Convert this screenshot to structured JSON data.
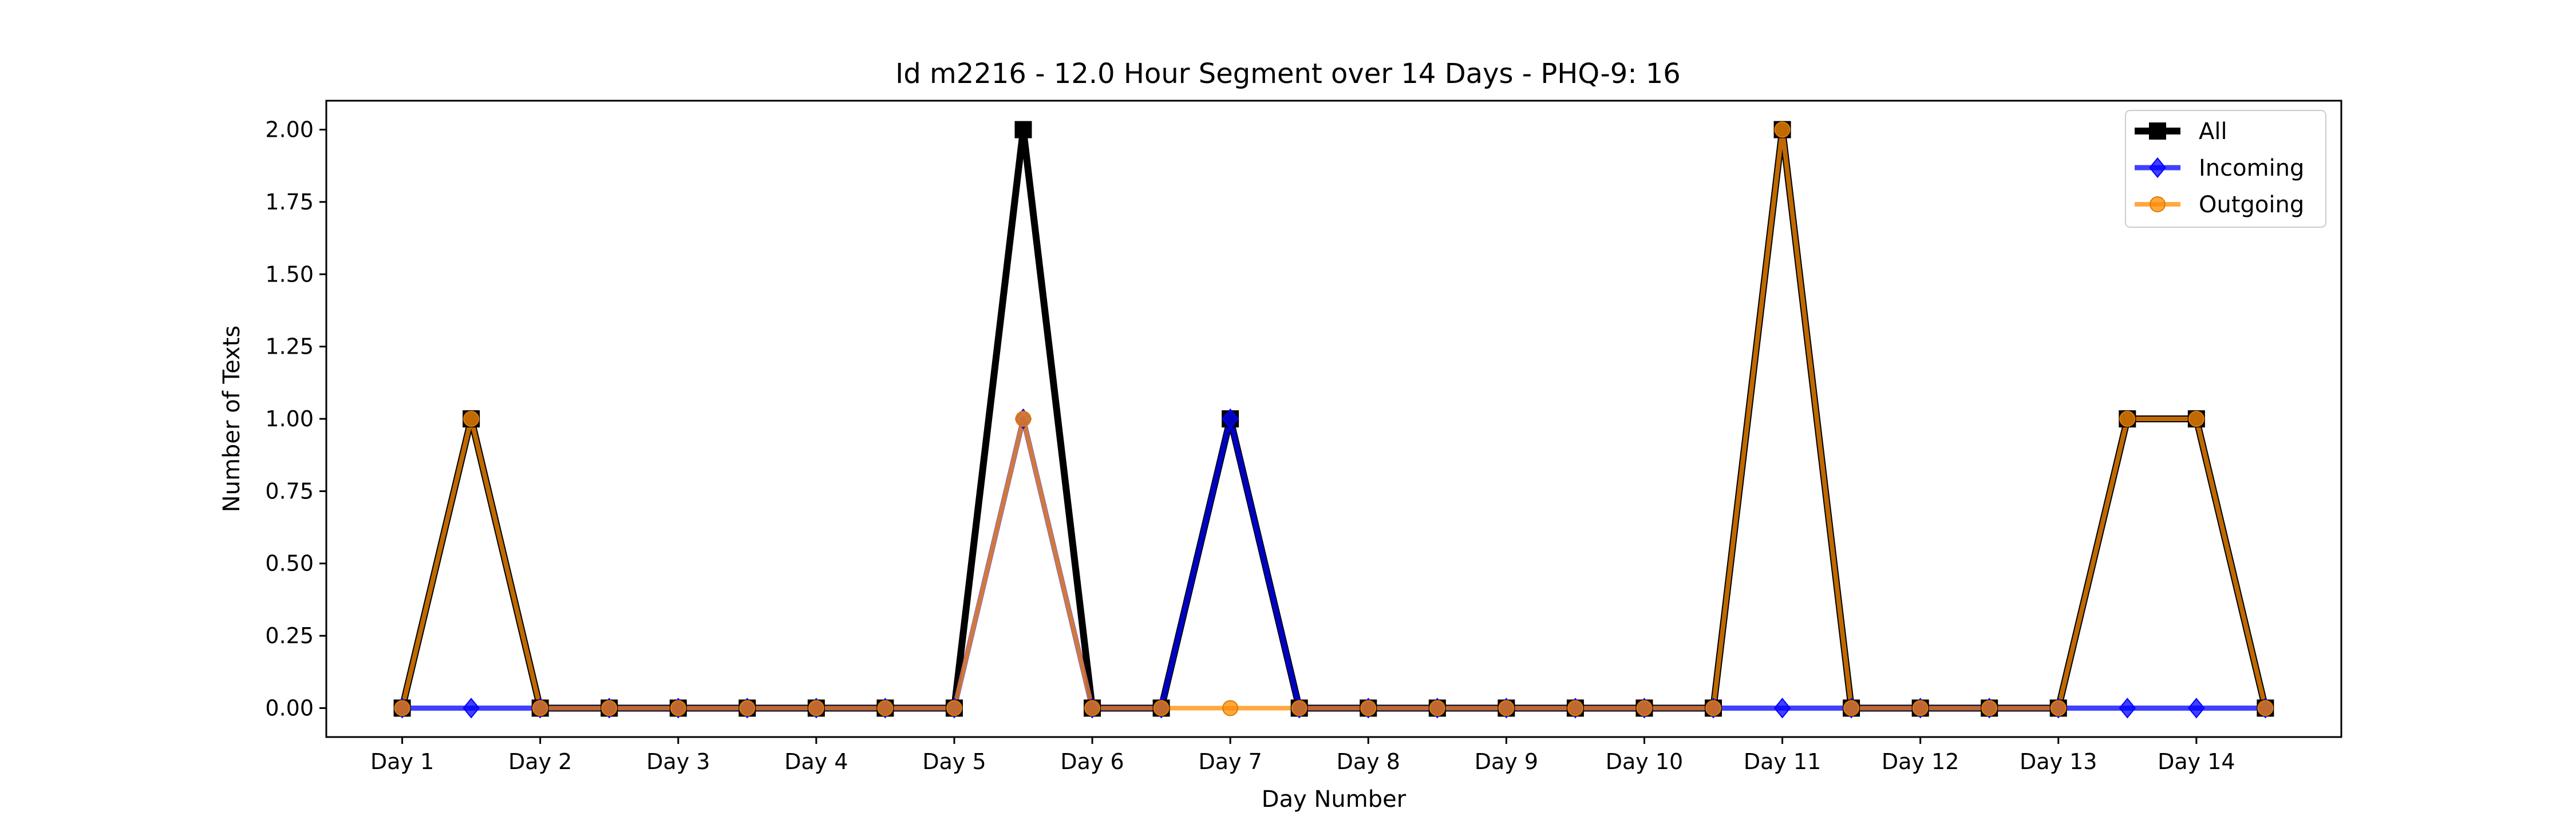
{
  "chart_data": {
    "type": "line",
    "title": "Id m2216 - 12.0 Hour Segment over 14 Days - PHQ-9: 16",
    "xlabel": "Day Number",
    "ylabel": "Number of Texts",
    "ylim": [
      -0.1,
      2.1
    ],
    "yticks": [
      "0.00",
      "0.25",
      "0.50",
      "0.75",
      "1.00",
      "1.25",
      "1.50",
      "1.75",
      "2.00"
    ],
    "xticks": [
      "Day 1",
      "Day 2",
      "Day 3",
      "Day 4",
      "Day 5",
      "Day 6",
      "Day 7",
      "Day 8",
      "Day 9",
      "Day 10",
      "Day 11",
      "Day 12",
      "Day 13",
      "Day 14"
    ],
    "x": [
      1,
      1.5,
      2,
      2.5,
      3,
      3.5,
      4,
      4.5,
      5,
      5.5,
      6,
      6.5,
      7,
      7.5,
      8,
      8.5,
      9,
      9.5,
      10,
      10.5,
      11,
      11.5,
      12,
      12.5,
      13,
      13.5,
      14,
      14.5
    ],
    "xlim": [
      0.45,
      15.05
    ],
    "legend_position": "top-right",
    "grid": false,
    "series": [
      {
        "name": "All",
        "color": "#000000",
        "marker": "square",
        "values": [
          0,
          1,
          0,
          0,
          0,
          0,
          0,
          0,
          0,
          2,
          0,
          0,
          1,
          0,
          0,
          0,
          0,
          0,
          0,
          0,
          2,
          0,
          0,
          0,
          0,
          1,
          1,
          0
        ]
      },
      {
        "name": "Incoming",
        "color": "#0000ff",
        "marker": "diamond",
        "values": [
          0,
          0,
          0,
          0,
          0,
          0,
          0,
          0,
          0,
          1,
          0,
          0,
          1,
          0,
          0,
          0,
          0,
          0,
          0,
          0,
          0,
          0,
          0,
          0,
          0,
          0,
          0,
          0
        ]
      },
      {
        "name": "Outgoing",
        "color": "#ff8c00",
        "marker": "circle",
        "values": [
          0,
          1,
          0,
          0,
          0,
          0,
          0,
          0,
          0,
          1,
          0,
          0,
          0,
          0,
          0,
          0,
          0,
          0,
          0,
          0,
          2,
          0,
          0,
          0,
          0,
          1,
          1,
          0
        ]
      }
    ]
  }
}
